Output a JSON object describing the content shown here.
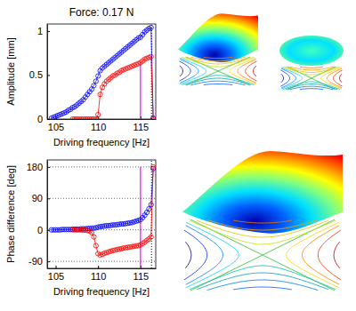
{
  "chart_data": [
    {
      "type": "line",
      "title": "Force: 0.17 N",
      "x_label": "Driving frequency [Hz]",
      "y_label": "Amplitude [mm]",
      "x": [
        104.5,
        104.75,
        105,
        105.25,
        105.5,
        105.75,
        106,
        106.25,
        106.5,
        106.75,
        107,
        107.25,
        107.5,
        107.75,
        108,
        108.25,
        108.5,
        108.75,
        109,
        109.25,
        109.5,
        109.75,
        110,
        110.25,
        110.5,
        110.75,
        111,
        111.25,
        111.5,
        111.75,
        112,
        112.25,
        112.5,
        112.75,
        113,
        113.25,
        113.5,
        113.75,
        114,
        114.25,
        114.5,
        114.75,
        115,
        115.25,
        115.5,
        115.75,
        116,
        116.25,
        116.5
      ],
      "series": [
        {
          "color": "#0000ff",
          "marker": "circle",
          "line_style": "solid",
          "values": [
            0.01,
            0.02,
            0.03,
            0.04,
            0.05,
            0.06,
            0.07,
            0.08,
            0.1,
            0.11,
            0.13,
            0.14,
            0.16,
            0.18,
            0.2,
            0.22,
            0.25,
            0.28,
            0.31,
            0.34,
            0.38,
            0.43,
            0.49,
            0.55,
            0.58,
            0.6,
            0.62,
            0.64,
            0.66,
            0.68,
            0.7,
            0.72,
            0.74,
            0.76,
            0.78,
            0.8,
            0.82,
            0.84,
            0.86,
            0.88,
            0.9,
            0.92,
            0.93,
            0.96,
            0.99,
            1.01,
            1.03,
            1.04,
            0.01
          ]
        },
        {
          "color": "#ff0000",
          "marker": "circle",
          "line_style": "solid",
          "values": [
            null,
            null,
            null,
            null,
            null,
            null,
            null,
            null,
            null,
            null,
            0,
            0,
            0,
            0,
            0,
            0,
            0,
            0,
            0,
            0,
            0,
            0,
            0.05,
            0.28,
            0.36,
            0.4,
            0.43,
            0.45,
            0.47,
            0.49,
            0.5,
            0.52,
            0.53,
            0.55,
            0.56,
            0.57,
            0.58,
            0.59,
            0.6,
            0.61,
            0.62,
            0.63,
            0.64,
            0.66,
            0.68,
            0.69,
            0.7,
            0.71,
            0
          ]
        }
      ],
      "xlim": [
        104,
        116.8
      ],
      "xticks": [
        105,
        110,
        115
      ],
      "ylim": [
        0,
        1.08
      ],
      "yticks": [
        0,
        0.5,
        1
      ],
      "grid": false,
      "vlines": [
        {
          "x": 115,
          "y": [
            0,
            0.64
          ],
          "color": "#ff00ff",
          "line_style": "solid"
        },
        {
          "x": 116.3,
          "y": [
            0,
            1.08
          ],
          "color": "#000000",
          "line_style": "dotted"
        }
      ]
    },
    {
      "type": "line",
      "x_label": "Driving frequency [Hz]",
      "y_label": "Phase difference [deg]",
      "x": [
        104.5,
        104.75,
        105,
        105.25,
        105.5,
        105.75,
        106,
        106.25,
        106.5,
        106.75,
        107,
        107.25,
        107.5,
        107.75,
        108,
        108.25,
        108.5,
        108.75,
        109,
        109.25,
        109.5,
        109.75,
        110,
        110.25,
        110.5,
        110.75,
        111,
        111.25,
        111.5,
        111.75,
        112,
        112.25,
        112.5,
        112.75,
        113,
        113.25,
        113.5,
        113.75,
        114,
        114.25,
        114.5,
        114.75,
        115,
        115.25,
        115.5,
        115.75,
        116,
        116.25,
        116.5
      ],
      "series": [
        {
          "color": "#0000ff",
          "marker": "circle",
          "line_style": "solid",
          "values": [
            0,
            0,
            0,
            0,
            0,
            1,
            1,
            1,
            1,
            1,
            2,
            2,
            2,
            2,
            3,
            3,
            3,
            4,
            4,
            5,
            5,
            6,
            8,
            9,
            10,
            11,
            12,
            12,
            13,
            14,
            14,
            15,
            16,
            17,
            17,
            18,
            19,
            20,
            21,
            23,
            25,
            27,
            29,
            35,
            42,
            50,
            60,
            72,
            175
          ]
        },
        {
          "color": "#ff0000",
          "marker": "circle",
          "line_style": "solid",
          "values": [
            null,
            null,
            null,
            null,
            null,
            null,
            null,
            null,
            null,
            null,
            0,
            0,
            0,
            0,
            0,
            -1,
            -1,
            -2,
            -3,
            -8,
            -20,
            -45,
            -68,
            -72,
            -70,
            -67,
            -65,
            -63,
            -61,
            -59,
            -58,
            -56,
            -55,
            -54,
            -52,
            -51,
            -50,
            -49,
            -48,
            -47,
            -46,
            -45,
            -43,
            -39,
            -35,
            -30,
            -26,
            -20,
            180
          ]
        }
      ],
      "xlim": [
        104,
        116.8
      ],
      "xticks": [
        105,
        110,
        115
      ],
      "ylim": [
        -110,
        200
      ],
      "yticks": [
        -90,
        0,
        90,
        180
      ],
      "grid": true,
      "vlines": [
        {
          "x": 115,
          "y": [
            -110,
            180
          ],
          "color": "#ff00ff",
          "line_style": "solid"
        },
        {
          "x": 116.3,
          "y": [
            -110,
            200
          ],
          "color": "#000000",
          "line_style": "dotted"
        }
      ]
    }
  ]
}
